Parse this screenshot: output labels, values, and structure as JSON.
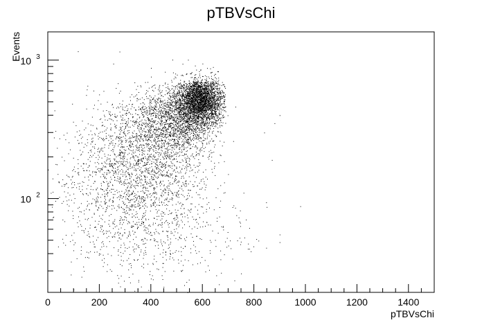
{
  "chart_data": {
    "type": "scatter",
    "title": "pTBVsChi",
    "xlabel": "pTBVsChi",
    "ylabel": "Events",
    "xlim": [
      0,
      1500
    ],
    "ylim": [
      21,
      1600
    ],
    "yscale": "log",
    "grid": false,
    "legend": "none",
    "x_ticks": [
      0,
      200,
      400,
      600,
      800,
      1000,
      1200,
      1400
    ],
    "y_ticks": [
      {
        "value": 100,
        "base": "10",
        "exp": "2"
      },
      {
        "value": 1000,
        "base": "10",
        "exp": "3"
      }
    ],
    "point_color": "#000000",
    "dense_region_note": "",
    "clusters": [
      {
        "cx": 590,
        "cy": 520,
        "sx": 45,
        "sy": 0.09,
        "n": 3200
      },
      {
        "cx": 500,
        "cy": 380,
        "sx": 80,
        "sy": 0.12,
        "n": 1400
      },
      {
        "cx": 400,
        "cy": 230,
        "sx": 120,
        "sy": 0.22,
        "n": 1500
      },
      {
        "cx": 300,
        "cy": 120,
        "sx": 130,
        "sy": 0.26,
        "n": 1000
      },
      {
        "cx": 450,
        "cy": 60,
        "sx": 160,
        "sy": 0.22,
        "n": 500
      }
    ],
    "outliers": [
      {
        "x": 980,
        "y": 88
      },
      {
        "x": 900,
        "y": 55
      },
      {
        "x": 900,
        "y": 400
      },
      {
        "x": 870,
        "y": 190
      },
      {
        "x": 840,
        "y": 300
      },
      {
        "x": 760,
        "y": 110
      },
      {
        "x": 720,
        "y": 260
      },
      {
        "x": 700,
        "y": 150
      },
      {
        "x": 40,
        "y": 45
      },
      {
        "x": 60,
        "y": 48
      },
      {
        "x": 90,
        "y": 35
      },
      {
        "x": 100,
        "y": 22
      },
      {
        "x": 140,
        "y": 30
      },
      {
        "x": 880,
        "y": 350
      }
    ]
  }
}
